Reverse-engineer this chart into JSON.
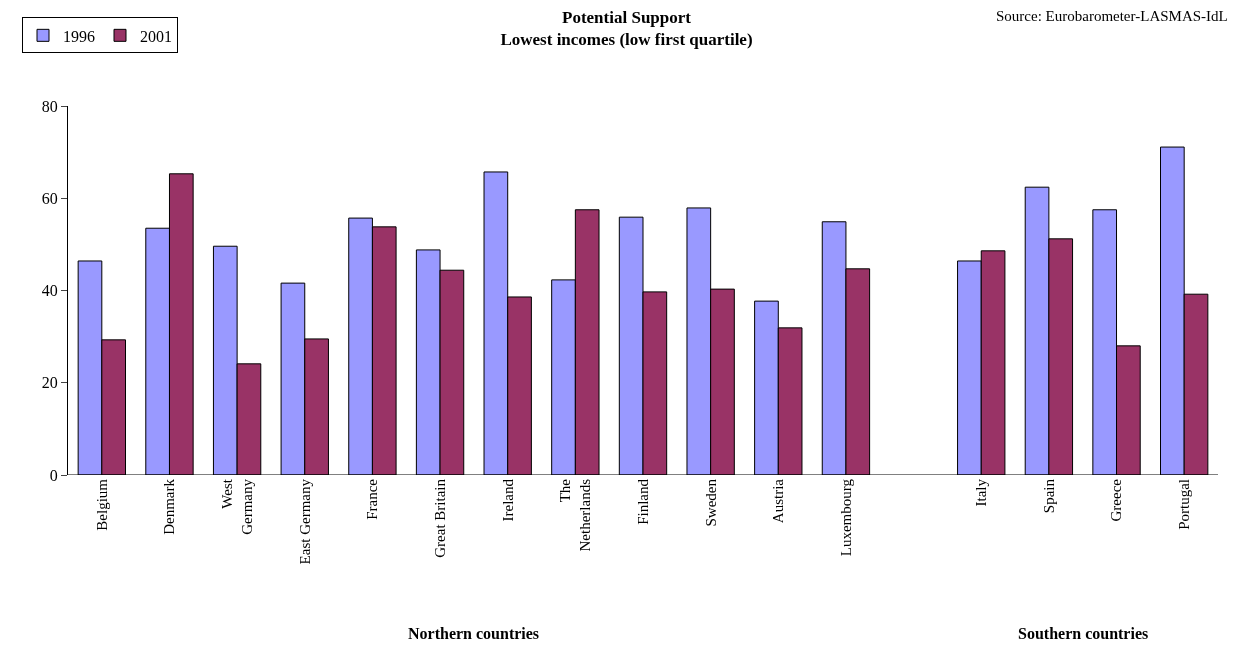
{
  "chart_data": {
    "type": "bar",
    "title": "Potential Support",
    "subtitle": "Lowest incomes (low first quartile)",
    "categories": [
      "Belgium",
      "Denmark",
      "West\nGermany",
      "East Germany",
      "France",
      "Great Britain",
      "Ireland",
      "The\nNetherlands",
      "Finland",
      "Sweden",
      "Austria",
      "Luxembourg",
      null,
      "Italy",
      "Spain",
      "Greece",
      "Portugal"
    ],
    "series": [
      {
        "name": "1996",
        "color": "#9999ff",
        "values": [
          46.4,
          53.5,
          49.6,
          41.6,
          55.7,
          48.8,
          65.7,
          42.3,
          55.9,
          57.9,
          37.7,
          54.9,
          null,
          46.4,
          62.4,
          57.5,
          71.1
        ]
      },
      {
        "name": "2001",
        "color": "#993366",
        "values": [
          29.3,
          65.3,
          24.1,
          29.5,
          53.8,
          44.4,
          38.6,
          57.5,
          39.7,
          40.3,
          31.9,
          44.7,
          null,
          48.6,
          51.2,
          28.0,
          39.2
        ]
      }
    ],
    "ylim": [
      0,
      80
    ],
    "yticks": [
      0,
      20,
      40,
      60,
      80
    ],
    "legend": "top left",
    "annotations": [
      "Source: Eurobarometer-LASMAS-IdL",
      "Northern countries",
      "Southern countries"
    ]
  }
}
